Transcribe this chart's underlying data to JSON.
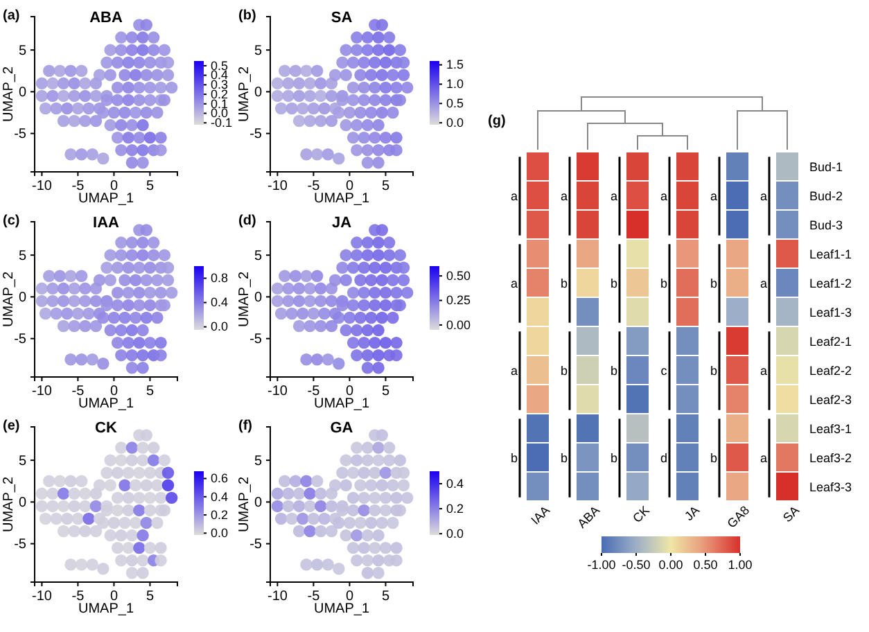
{
  "chart_data": [
    {
      "type": "scatter",
      "title": "ABA",
      "xlabel": "UMAP_1",
      "ylabel": "UMAP_2",
      "annotations": [
        "(a)"
      ],
      "marker": "circle",
      "xlim": [
        -11,
        8.8
      ],
      "ylim": [
        -9.6,
        9
      ],
      "xticks": [
        -10,
        -5,
        0,
        5
      ],
      "yticks": [
        -5,
        0,
        5
      ],
      "clim": [
        -0.12,
        0.55
      ],
      "cticks": [
        -0.1,
        {
          "value": 0,
          "label": "0.0"
        },
        0.1,
        0.2,
        0.3,
        0.4,
        0.5
      ],
      "x": [
        -9,
        -7.5,
        -6,
        -4.5,
        -10,
        -8.5,
        -7,
        -5.5,
        -4,
        -2.5,
        -10,
        -8.5,
        -7,
        -5.5,
        -4,
        -2.5,
        -1,
        -9.5,
        -8,
        -6.5,
        -5,
        -3.5,
        -2,
        -7,
        -5.5,
        -4,
        -2.5,
        3.5,
        4.5,
        1,
        2.5,
        4,
        5.5,
        -0.5,
        1,
        2.5,
        4,
        5.5,
        7,
        -1,
        0.5,
        2,
        3.5,
        5,
        6.5,
        7.5,
        -2,
        -0.5,
        1.5,
        3,
        4.5,
        6,
        7.5,
        0.5,
        2,
        3.5,
        5,
        6.5,
        8,
        -1,
        0.5,
        2,
        3.5,
        5,
        6.5,
        7,
        -1.5,
        0,
        1.5,
        3,
        4.5,
        6,
        -0.5,
        1,
        2.5,
        4,
        0.5,
        2,
        3.5,
        5,
        6.5,
        1,
        2.5,
        4,
        5.5,
        6.5,
        2.5,
        4,
        -6,
        -4.5,
        -3,
        -1.5
      ],
      "values": [
        2.5,
        2.5,
        2.5,
        2.5,
        1,
        1,
        1,
        1,
        1,
        1,
        -0.5,
        -0.5,
        -0.5,
        -0.5,
        -0.5,
        -0.5,
        -0.5,
        -2,
        -2,
        -2,
        -2,
        -2,
        -2,
        -3.5,
        -3.5,
        -3.5,
        -3.5,
        8,
        8,
        6.5,
        6.5,
        6.5,
        6.5,
        5,
        5,
        5,
        5,
        5,
        5,
        3.5,
        3.5,
        3.5,
        3.5,
        3.5,
        3.5,
        3.5,
        2,
        2,
        2,
        2,
        2,
        2,
        2,
        0.5,
        0.5,
        0.5,
        0.5,
        0.5,
        0.5,
        -1,
        -1,
        -1,
        -1,
        -1,
        -1,
        -1,
        -2.5,
        -2.5,
        -2.5,
        -2.5,
        -2.5,
        -2.5,
        -4,
        -4,
        -4,
        -4,
        -5.5,
        -5.5,
        -5.5,
        -5.5,
        -5.5,
        -7,
        -7,
        -7,
        -7,
        -7,
        -8.5,
        -8.5,
        -7.5,
        -7.5,
        -7.5,
        -8
      ],
      "cvalues": [
        0.08,
        0.05,
        0.1,
        0.06,
        0.07,
        0.04,
        0.09,
        0.12,
        0.05,
        0.08,
        0.06,
        0.1,
        0.04,
        0.08,
        0.11,
        0.07,
        0.09,
        0.05,
        0.08,
        0.12,
        0.06,
        0.09,
        0.1,
        0.07,
        0.05,
        0.08,
        0.1,
        0.12,
        0.15,
        0.1,
        0.14,
        0.18,
        0.12,
        0.08,
        0.12,
        0.16,
        0.2,
        0.14,
        0.1,
        0.09,
        0.13,
        0.17,
        0.15,
        0.12,
        0.1,
        0.08,
        0.07,
        0.1,
        0.14,
        0.18,
        0.13,
        0.11,
        0.09,
        0.12,
        0.15,
        0.11,
        0.1,
        0.08,
        0.09,
        0.1,
        0.13,
        0.16,
        0.12,
        0.1,
        0.08,
        0.11,
        0.09,
        0.12,
        0.14,
        0.1,
        0.13,
        0.11,
        0.08,
        0.15,
        0.12,
        0.2,
        0.1,
        0.18,
        0.14,
        0.22,
        0.16,
        0.12,
        0.16,
        0.19,
        0.15,
        0.1,
        0.14,
        0.12,
        0.06,
        0.09,
        0.07,
        0.05
      ]
    },
    {
      "type": "scatter",
      "title": "SA",
      "xlabel": "UMAP_1",
      "ylabel": "UMAP_2",
      "annotations": [
        "(b)"
      ],
      "marker": "circle",
      "xlim": [
        -11,
        8.8
      ],
      "ylim": [
        -9.6,
        9
      ],
      "xticks": [
        -10,
        -5,
        0,
        5
      ],
      "yticks": [
        -5,
        0,
        5
      ],
      "clim": [
        -0.05,
        1.6
      ],
      "cticks": [
        {
          "value": 0,
          "label": "0.0"
        },
        0.5,
        {
          "value": 1,
          "label": "1.0"
        },
        1.5
      ],
      "x": [
        -9,
        -7.5,
        -6,
        -4.5,
        -10,
        -8.5,
        -7,
        -5.5,
        -4,
        -2.5,
        -10,
        -8.5,
        -7,
        -5.5,
        -4,
        -2.5,
        -1,
        -9.5,
        -8,
        -6.5,
        -5,
        -3.5,
        -2,
        -7,
        -5.5,
        -4,
        -2.5,
        3.5,
        4.5,
        1,
        2.5,
        4,
        5.5,
        -0.5,
        1,
        2.5,
        4,
        5.5,
        7,
        -1,
        0.5,
        2,
        3.5,
        5,
        6.5,
        7.5,
        -2,
        -0.5,
        1.5,
        3,
        4.5,
        6,
        7.5,
        0.5,
        2,
        3.5,
        5,
        6.5,
        8,
        -1,
        0.5,
        2,
        3.5,
        5,
        6.5,
        7,
        -1.5,
        0,
        1.5,
        3,
        4.5,
        6,
        -0.5,
        1,
        2.5,
        4,
        0.5,
        2,
        3.5,
        5,
        6.5,
        1,
        2.5,
        4,
        5.5,
        6.5,
        2.5,
        4,
        -6,
        -4.5,
        -3,
        -1.5
      ],
      "values": [
        2.5,
        2.5,
        2.5,
        2.5,
        1,
        1,
        1,
        1,
        1,
        1,
        -0.5,
        -0.5,
        -0.5,
        -0.5,
        -0.5,
        -0.5,
        -0.5,
        -2,
        -2,
        -2,
        -2,
        -2,
        -2,
        -3.5,
        -3.5,
        -3.5,
        -3.5,
        8,
        8,
        6.5,
        6.5,
        6.5,
        6.5,
        5,
        5,
        5,
        5,
        5,
        5,
        3.5,
        3.5,
        3.5,
        3.5,
        3.5,
        3.5,
        3.5,
        2,
        2,
        2,
        2,
        2,
        2,
        2,
        0.5,
        0.5,
        0.5,
        0.5,
        0.5,
        0.5,
        -1,
        -1,
        -1,
        -1,
        -1,
        -1,
        -1,
        -2.5,
        -2.5,
        -2.5,
        -2.5,
        -2.5,
        -2.5,
        -4,
        -4,
        -4,
        -4,
        -5.5,
        -5.5,
        -5.5,
        -5.5,
        -5.5,
        -7,
        -7,
        -7,
        -7,
        -7,
        -8.5,
        -8.5,
        -7.5,
        -7.5,
        -7.5,
        -8
      ],
      "cvalues": [
        0.35,
        0.4,
        0.3,
        0.45,
        0.3,
        0.38,
        0.42,
        0.35,
        0.5,
        0.4,
        0.32,
        0.36,
        0.44,
        0.38,
        0.3,
        0.46,
        0.5,
        0.34,
        0.4,
        0.36,
        0.42,
        0.48,
        0.38,
        0.3,
        0.36,
        0.4,
        0.45,
        0.7,
        0.75,
        0.65,
        0.72,
        0.8,
        0.7,
        0.55,
        0.62,
        0.7,
        0.78,
        0.85,
        0.68,
        0.5,
        0.58,
        0.66,
        0.74,
        0.8,
        0.72,
        0.65,
        0.45,
        0.5,
        0.6,
        0.7,
        0.75,
        0.68,
        0.7,
        0.48,
        0.55,
        0.62,
        0.7,
        0.66,
        0.6,
        0.45,
        0.5,
        0.55,
        0.6,
        0.65,
        0.7,
        0.62,
        0.42,
        0.48,
        0.55,
        0.6,
        0.64,
        0.58,
        0.46,
        0.52,
        0.58,
        0.62,
        0.5,
        0.56,
        0.6,
        0.66,
        0.7,
        0.48,
        0.54,
        0.6,
        0.65,
        0.62,
        0.5,
        0.55,
        0.4,
        0.35,
        0.45,
        0.38
      ]
    },
    {
      "type": "scatter",
      "title": "IAA",
      "xlabel": "UMAP_1",
      "ylabel": "UMAP_2",
      "annotations": [
        "(c)"
      ],
      "marker": "circle",
      "xlim": [
        -11,
        8.8
      ],
      "ylim": [
        -9.6,
        9
      ],
      "xticks": [
        -10,
        -5,
        0,
        5
      ],
      "yticks": [
        -5,
        0,
        5
      ],
      "clim": [
        -0.05,
        1.0
      ],
      "cticks": [
        {
          "value": 0,
          "label": "0.0"
        },
        0.4,
        0.8
      ],
      "x": [
        -9,
        -7.5,
        -6,
        -4.5,
        -10,
        -8.5,
        -7,
        -5.5,
        -4,
        -2.5,
        -10,
        -8.5,
        -7,
        -5.5,
        -4,
        -2.5,
        -1,
        -9.5,
        -8,
        -6.5,
        -5,
        -3.5,
        -2,
        -7,
        -5.5,
        -4,
        -2.5,
        3.5,
        4.5,
        1,
        2.5,
        4,
        5.5,
        -0.5,
        1,
        2.5,
        4,
        5.5,
        7,
        -1,
        0.5,
        2,
        3.5,
        5,
        6.5,
        7.5,
        -2,
        -0.5,
        1.5,
        3,
        4.5,
        6,
        7.5,
        0.5,
        2,
        3.5,
        5,
        6.5,
        8,
        -1,
        0.5,
        2,
        3.5,
        5,
        6.5,
        7,
        -1.5,
        0,
        1.5,
        3,
        4.5,
        6,
        -0.5,
        1,
        2.5,
        4,
        0.5,
        2,
        3.5,
        5,
        6.5,
        1,
        2.5,
        4,
        5.5,
        6.5,
        2.5,
        4,
        -6,
        -4.5,
        -3,
        -1.5
      ],
      "values": [
        2.5,
        2.5,
        2.5,
        2.5,
        1,
        1,
        1,
        1,
        1,
        1,
        -0.5,
        -0.5,
        -0.5,
        -0.5,
        -0.5,
        -0.5,
        -0.5,
        -2,
        -2,
        -2,
        -2,
        -2,
        -2,
        -3.5,
        -3.5,
        -3.5,
        -3.5,
        8,
        8,
        6.5,
        6.5,
        6.5,
        6.5,
        5,
        5,
        5,
        5,
        5,
        5,
        3.5,
        3.5,
        3.5,
        3.5,
        3.5,
        3.5,
        3.5,
        2,
        2,
        2,
        2,
        2,
        2,
        2,
        0.5,
        0.5,
        0.5,
        0.5,
        0.5,
        0.5,
        -1,
        -1,
        -1,
        -1,
        -1,
        -1,
        -1,
        -2.5,
        -2.5,
        -2.5,
        -2.5,
        -2.5,
        -2.5,
        -4,
        -4,
        -4,
        -4,
        -5.5,
        -5.5,
        -5.5,
        -5.5,
        -5.5,
        -7,
        -7,
        -7,
        -7,
        -7,
        -8.5,
        -8.5,
        -7.5,
        -7.5,
        -7.5,
        -8
      ],
      "cvalues": [
        0.25,
        0.3,
        0.22,
        0.28,
        0.2,
        0.26,
        0.32,
        0.24,
        0.3,
        0.28,
        0.22,
        0.26,
        0.3,
        0.24,
        0.28,
        0.32,
        0.35,
        0.2,
        0.26,
        0.3,
        0.24,
        0.28,
        0.34,
        0.22,
        0.26,
        0.3,
        0.28,
        0.3,
        0.34,
        0.28,
        0.32,
        0.36,
        0.3,
        0.26,
        0.3,
        0.34,
        0.38,
        0.32,
        0.28,
        0.24,
        0.28,
        0.32,
        0.3,
        0.34,
        0.3,
        0.26,
        0.3,
        0.26,
        0.32,
        0.36,
        0.3,
        0.28,
        0.26,
        0.32,
        0.3,
        0.34,
        0.28,
        0.3,
        0.26,
        0.3,
        0.34,
        0.38,
        0.32,
        0.36,
        0.3,
        0.28,
        0.34,
        0.38,
        0.4,
        0.36,
        0.42,
        0.38,
        0.36,
        0.4,
        0.44,
        0.38,
        0.36,
        0.42,
        0.46,
        0.4,
        0.44,
        0.38,
        0.42,
        0.46,
        0.48,
        0.4,
        0.36,
        0.4,
        0.28,
        0.3,
        0.26,
        0.32
      ]
    },
    {
      "type": "scatter",
      "title": "JA",
      "xlabel": "UMAP_1",
      "ylabel": "UMAP_2",
      "annotations": [
        "(d)"
      ],
      "marker": "circle",
      "xlim": [
        -11,
        8.8
      ],
      "ylim": [
        -9.6,
        9
      ],
      "xticks": [
        -10,
        -5,
        0,
        5
      ],
      "yticks": [
        -5,
        0,
        5
      ],
      "clim": [
        -0.05,
        0.6
      ],
      "cticks": [
        {
          "value": 0,
          "label": "0.00"
        },
        0.25,
        {
          "value": 0.5,
          "label": "0.50"
        }
      ],
      "x": [
        -9,
        -7.5,
        -6,
        -4.5,
        -10,
        -8.5,
        -7,
        -5.5,
        -4,
        -2.5,
        -10,
        -8.5,
        -7,
        -5.5,
        -4,
        -2.5,
        -1,
        -9.5,
        -8,
        -6.5,
        -5,
        -3.5,
        -2,
        -7,
        -5.5,
        -4,
        -2.5,
        3.5,
        4.5,
        1,
        2.5,
        4,
        5.5,
        -0.5,
        1,
        2.5,
        4,
        5.5,
        7,
        -1,
        0.5,
        2,
        3.5,
        5,
        6.5,
        7.5,
        -2,
        -0.5,
        1.5,
        3,
        4.5,
        6,
        7.5,
        0.5,
        2,
        3.5,
        5,
        6.5,
        8,
        -1,
        0.5,
        2,
        3.5,
        5,
        6.5,
        7,
        -1.5,
        0,
        1.5,
        3,
        4.5,
        6,
        -0.5,
        1,
        2.5,
        4,
        0.5,
        2,
        3.5,
        5,
        6.5,
        1,
        2.5,
        4,
        5.5,
        6.5,
        2.5,
        4,
        -6,
        -4.5,
        -3,
        -1.5
      ],
      "values": [
        2.5,
        2.5,
        2.5,
        2.5,
        1,
        1,
        1,
        1,
        1,
        1,
        -0.5,
        -0.5,
        -0.5,
        -0.5,
        -0.5,
        -0.5,
        -0.5,
        -2,
        -2,
        -2,
        -2,
        -2,
        -2,
        -3.5,
        -3.5,
        -3.5,
        -3.5,
        8,
        8,
        6.5,
        6.5,
        6.5,
        6.5,
        5,
        5,
        5,
        5,
        5,
        5,
        3.5,
        3.5,
        3.5,
        3.5,
        3.5,
        3.5,
        3.5,
        2,
        2,
        2,
        2,
        2,
        2,
        2,
        0.5,
        0.5,
        0.5,
        0.5,
        0.5,
        0.5,
        -1,
        -1,
        -1,
        -1,
        -1,
        -1,
        -1,
        -2.5,
        -2.5,
        -2.5,
        -2.5,
        -2.5,
        -2.5,
        -4,
        -4,
        -4,
        -4,
        -5.5,
        -5.5,
        -5.5,
        -5.5,
        -5.5,
        -7,
        -7,
        -7,
        -7,
        -7,
        -8.5,
        -8.5,
        -7.5,
        -7.5,
        -7.5,
        -8
      ],
      "cvalues": [
        0.15,
        0.18,
        0.14,
        0.2,
        0.12,
        0.16,
        0.18,
        0.15,
        0.2,
        0.17,
        0.13,
        0.16,
        0.19,
        0.15,
        0.18,
        0.2,
        0.22,
        0.14,
        0.16,
        0.18,
        0.15,
        0.19,
        0.21,
        0.14,
        0.16,
        0.18,
        0.2,
        0.26,
        0.28,
        0.24,
        0.27,
        0.3,
        0.26,
        0.22,
        0.25,
        0.28,
        0.3,
        0.27,
        0.24,
        0.2,
        0.24,
        0.27,
        0.29,
        0.3,
        0.27,
        0.24,
        0.18,
        0.22,
        0.26,
        0.28,
        0.3,
        0.26,
        0.25,
        0.2,
        0.24,
        0.27,
        0.28,
        0.26,
        0.24,
        0.2,
        0.23,
        0.26,
        0.28,
        0.3,
        0.27,
        0.25,
        0.21,
        0.24,
        0.27,
        0.29,
        0.31,
        0.28,
        0.24,
        0.27,
        0.3,
        0.32,
        0.25,
        0.28,
        0.31,
        0.33,
        0.3,
        0.26,
        0.29,
        0.32,
        0.3,
        0.28,
        0.27,
        0.3,
        0.18,
        0.2,
        0.16,
        0.19
      ]
    },
    {
      "type": "scatter",
      "title": "CK",
      "xlabel": "UMAP_1",
      "ylabel": "UMAP_2",
      "annotations": [
        "(e)"
      ],
      "marker": "circle",
      "xlim": [
        -11,
        8.8
      ],
      "ylim": [
        -9.6,
        9
      ],
      "xticks": [
        -10,
        -5,
        0,
        5
      ],
      "yticks": [
        -5,
        0,
        5
      ],
      "clim": [
        -0.02,
        0.68
      ],
      "cticks": [
        {
          "value": 0,
          "label": "0.0"
        },
        0.2,
        0.4,
        0.6
      ],
      "x": [
        -9,
        -7.5,
        -6,
        -4.5,
        -10,
        -8.5,
        -7,
        -5.5,
        -4,
        -2.5,
        -10,
        -8.5,
        -7,
        -5.5,
        -4,
        -2.5,
        -1,
        -9.5,
        -8,
        -6.5,
        -5,
        -3.5,
        -2,
        -7,
        -5.5,
        -4,
        -2.5,
        3.5,
        4.5,
        1,
        2.5,
        4,
        5.5,
        -0.5,
        1,
        2.5,
        4,
        5.5,
        7,
        -1,
        0.5,
        2,
        3.5,
        5,
        6.5,
        7.5,
        -2,
        -0.5,
        1.5,
        3,
        4.5,
        6,
        7.5,
        0.5,
        2,
        3.5,
        5,
        6.5,
        8,
        -1,
        0.5,
        2,
        3.5,
        5,
        6.5,
        7,
        -1.5,
        0,
        1.5,
        3,
        4.5,
        6,
        -0.5,
        1,
        2.5,
        4,
        0.5,
        2,
        3.5,
        5,
        6.5,
        1,
        2.5,
        4,
        5.5,
        6.5,
        2.5,
        4,
        -6,
        -4.5,
        -3,
        -1.5
      ],
      "values": [
        2.5,
        2.5,
        2.5,
        2.5,
        1,
        1,
        1,
        1,
        1,
        1,
        -0.5,
        -0.5,
        -0.5,
        -0.5,
        -0.5,
        -0.5,
        -0.5,
        -2,
        -2,
        -2,
        -2,
        -2,
        -2,
        -3.5,
        -3.5,
        -3.5,
        -3.5,
        8,
        8,
        6.5,
        6.5,
        6.5,
        6.5,
        5,
        5,
        5,
        5,
        5,
        5,
        3.5,
        3.5,
        3.5,
        3.5,
        3.5,
        3.5,
        3.5,
        2,
        2,
        2,
        2,
        2,
        2,
        2,
        0.5,
        0.5,
        0.5,
        0.5,
        0.5,
        0.5,
        -1,
        -1,
        -1,
        -1,
        -1,
        -1,
        -1,
        -2.5,
        -2.5,
        -2.5,
        -2.5,
        -2.5,
        -2.5,
        -4,
        -4,
        -4,
        -4,
        -5.5,
        -5.5,
        -5.5,
        -5.5,
        -5.5,
        -7,
        -7,
        -7,
        -7,
        -7,
        -8.5,
        -8.5,
        -7.5,
        -7.5,
        -7.5,
        -8
      ],
      "cvalues": [
        0.02,
        0.01,
        0.03,
        0.02,
        0.01,
        0.02,
        0.3,
        0.02,
        0.01,
        0.03,
        0.02,
        0.02,
        0.01,
        0.03,
        0.02,
        0.25,
        0.02,
        0.01,
        0.02,
        0.03,
        0.02,
        0.35,
        0.02,
        0.01,
        0.02,
        0.03,
        0.02,
        0.02,
        0.03,
        0.02,
        0.28,
        0.02,
        0.03,
        0.02,
        0.01,
        0.03,
        0.02,
        0.3,
        0.02,
        0.02,
        0.03,
        0.02,
        0.01,
        0.02,
        0.03,
        0.4,
        0.02,
        0.01,
        0.32,
        0.02,
        0.03,
        0.02,
        0.5,
        0.02,
        0.03,
        0.02,
        0.01,
        0.02,
        0.45,
        0.02,
        0.01,
        0.03,
        0.3,
        0.02,
        0.02,
        0.03,
        0.02,
        0.03,
        0.02,
        0.01,
        0.26,
        0.02,
        0.02,
        0.03,
        0.02,
        0.3,
        0.02,
        0.01,
        0.35,
        0.02,
        0.03,
        0.02,
        0.03,
        0.02,
        0.28,
        0.02,
        0.02,
        0.03,
        0.02,
        0.01,
        0.02,
        0.03
      ]
    },
    {
      "type": "scatter",
      "title": "GA",
      "xlabel": "UMAP_1",
      "ylabel": "UMAP_2",
      "annotations": [
        "(f)"
      ],
      "marker": "circle",
      "xlim": [
        -11,
        8.8
      ],
      "ylim": [
        -9.6,
        9
      ],
      "xticks": [
        -10,
        -5,
        0,
        5
      ],
      "yticks": [
        -5,
        0,
        5
      ],
      "clim": [
        -0.01,
        0.5
      ],
      "cticks": [
        {
          "value": 0,
          "label": "0.0"
        },
        0.2,
        0.4
      ],
      "x": [
        -9,
        -7.5,
        -6,
        -4.5,
        -10,
        -8.5,
        -7,
        -5.5,
        -4,
        -2.5,
        -10,
        -8.5,
        -7,
        -5.5,
        -4,
        -2.5,
        -1,
        -9.5,
        -8,
        -6.5,
        -5,
        -3.5,
        -2,
        -7,
        -5.5,
        -4,
        -2.5,
        3.5,
        4.5,
        1,
        2.5,
        4,
        5.5,
        -0.5,
        1,
        2.5,
        4,
        5.5,
        7,
        -1,
        0.5,
        2,
        3.5,
        5,
        6.5,
        7.5,
        -2,
        -0.5,
        1.5,
        3,
        4.5,
        6,
        7.5,
        0.5,
        2,
        3.5,
        5,
        6.5,
        8,
        -1,
        0.5,
        2,
        3.5,
        5,
        6.5,
        7,
        -1.5,
        0,
        1.5,
        3,
        4.5,
        6,
        -0.5,
        1,
        2.5,
        4,
        0.5,
        2,
        3.5,
        5,
        6.5,
        1,
        2.5,
        4,
        5.5,
        6.5,
        2.5,
        4,
        -6,
        -4.5,
        -3,
        -1.5
      ],
      "values": [
        2.5,
        2.5,
        2.5,
        2.5,
        1,
        1,
        1,
        1,
        1,
        1,
        -0.5,
        -0.5,
        -0.5,
        -0.5,
        -0.5,
        -0.5,
        -0.5,
        -2,
        -2,
        -2,
        -2,
        -2,
        -2,
        -3.5,
        -3.5,
        -3.5,
        -3.5,
        8,
        8,
        6.5,
        6.5,
        6.5,
        6.5,
        5,
        5,
        5,
        5,
        5,
        5,
        3.5,
        3.5,
        3.5,
        3.5,
        3.5,
        3.5,
        3.5,
        2,
        2,
        2,
        2,
        2,
        2,
        2,
        0.5,
        0.5,
        0.5,
        0.5,
        0.5,
        0.5,
        -1,
        -1,
        -1,
        -1,
        -1,
        -1,
        -1,
        -2.5,
        -2.5,
        -2.5,
        -2.5,
        -2.5,
        -2.5,
        -4,
        -4,
        -4,
        -4,
        -5.5,
        -5.5,
        -5.5,
        -5.5,
        -5.5,
        -7,
        -7,
        -7,
        -7,
        -7,
        -8.5,
        -8.5,
        -7.5,
        -7.5,
        -7.5,
        -8
      ],
      "cvalues": [
        0.06,
        0.1,
        0.2,
        0.05,
        0.12,
        0.08,
        0.06,
        0.22,
        0.07,
        0.05,
        0.18,
        0.06,
        0.1,
        0.05,
        0.2,
        0.07,
        0.06,
        0.09,
        0.05,
        0.16,
        0.06,
        0.08,
        0.05,
        0.07,
        0.2,
        0.06,
        0.05,
        0.05,
        0.06,
        0.04,
        0.05,
        0.12,
        0.05,
        0.04,
        0.06,
        0.05,
        0.04,
        0.05,
        0.06,
        0.05,
        0.04,
        0.06,
        0.05,
        0.16,
        0.05,
        0.04,
        0.05,
        0.06,
        0.04,
        0.05,
        0.06,
        0.05,
        0.04,
        0.06,
        0.05,
        0.04,
        0.05,
        0.06,
        0.05,
        0.05,
        0.06,
        0.18,
        0.05,
        0.04,
        0.06,
        0.05,
        0.06,
        0.05,
        0.04,
        0.06,
        0.05,
        0.04,
        0.05,
        0.15,
        0.05,
        0.06,
        0.05,
        0.06,
        0.04,
        0.05,
        0.06,
        0.05,
        0.04,
        0.06,
        0.05,
        0.05,
        0.06,
        0.05,
        0.05,
        0.06,
        0.05,
        0.04
      ]
    },
    {
      "type": "heatmap",
      "categories": [
        "IAA",
        "ABA",
        "CK",
        "JA",
        "GA8",
        "SA"
      ],
      "y_categories": [
        "Bud-1",
        "Bud-2",
        "Bud-3",
        "Leaf1-1",
        "Leaf1-2",
        "Leaf1-3",
        "Leaf2-1",
        "Leaf2-2",
        "Leaf2-3",
        "Leaf3-1",
        "Leaf3-2",
        "Leaf3-3"
      ],
      "cells": [
        [
          0.85,
          0.95,
          0.9,
          0.9,
          -0.85,
          -0.4
        ],
        [
          0.85,
          0.9,
          0.85,
          0.9,
          -1,
          -0.75
        ],
        [
          0.8,
          0.9,
          1,
          0.9,
          -1,
          -0.75
        ],
        [
          0.55,
          0.4,
          -0.05,
          0.5,
          0.4,
          0.8
        ],
        [
          0.6,
          0.1,
          0.2,
          0.7,
          0.35,
          -0.8
        ],
        [
          0.1,
          -0.75,
          -0.1,
          0.7,
          -0.5,
          -0.45
        ],
        [
          0.1,
          -0.4,
          -0.65,
          -0.75,
          0.95,
          -0.15
        ],
        [
          0.25,
          -0.2,
          -0.8,
          -0.75,
          0.8,
          -0.05
        ],
        [
          0.4,
          -0.1,
          -0.95,
          -0.75,
          0.6,
          0.05
        ],
        [
          -0.95,
          -0.95,
          -0.35,
          -0.85,
          0.35,
          -0.15
        ],
        [
          -1,
          -0.7,
          -0.75,
          -0.85,
          0.8,
          0.65
        ],
        [
          -0.75,
          -0.75,
          -0.55,
          -0.85,
          0.4,
          1
        ]
      ],
      "clim": [
        -1,
        1
      ],
      "cticks": [
        {
          "value": -1,
          "label": "-1.00"
        },
        {
          "value": -0.5,
          "label": "-0.50"
        },
        {
          "value": 0,
          "label": "0.00"
        },
        {
          "value": 0.5,
          "label": "0.50"
        },
        {
          "value": 1,
          "label": "1.00"
        }
      ],
      "annotations": [
        "(g)",
        "a",
        "a",
        "a",
        "b",
        "a",
        "b",
        "b",
        "b",
        "a",
        "b",
        "b",
        "b",
        "a",
        "b",
        "c",
        "d",
        "a",
        "b",
        "b",
        "b",
        "a",
        "a",
        "a",
        "a"
      ]
    }
  ]
}
